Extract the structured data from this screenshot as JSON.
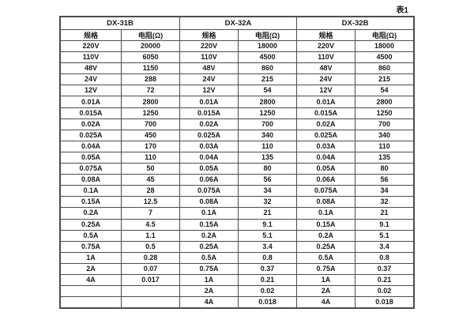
{
  "page": {
    "caption": "表1"
  },
  "table": {
    "groups": [
      {
        "name": "DX-31B",
        "spec_header": "规格",
        "resistance_header": "电阻(Ω)"
      },
      {
        "name": "DX-32A",
        "spec_header": "规格",
        "resistance_header": "电阻(Ω)"
      },
      {
        "name": "DX-32B",
        "spec_header": "规格",
        "resistance_header": "电阻(Ω)"
      }
    ],
    "rows": [
      [
        "220V",
        "20000",
        "220V",
        "18000",
        "220V",
        "18000"
      ],
      [
        "110V",
        "6050",
        "110V",
        "4500",
        "110V",
        "4500"
      ],
      [
        "48V",
        "1150",
        "48V",
        "860",
        "48V",
        "860"
      ],
      [
        "24V",
        "288",
        "24V",
        "215",
        "24V",
        "215"
      ],
      [
        "12V",
        "72",
        "12V",
        "54",
        "12V",
        "54"
      ],
      [
        "0.01A",
        "2800",
        "0.01A",
        "2800",
        "0.01A",
        "2800"
      ],
      [
        "0.015A",
        "1250",
        "0.015A",
        "1250",
        "0.015A",
        "1250"
      ],
      [
        "0.02A",
        "700",
        "0.02A",
        "700",
        "0.02A",
        "700"
      ],
      [
        "0.025A",
        "450",
        "0.025A",
        "340",
        "0.025A",
        "340"
      ],
      [
        "0.04A",
        "170",
        "0.03A",
        "110",
        "0.03A",
        "110"
      ],
      [
        "0.05A",
        "110",
        "0.04A",
        "135",
        "0.04A",
        "135"
      ],
      [
        "0.075A",
        "50",
        "0.05A",
        "80",
        "0.05A",
        "80"
      ],
      [
        "0.08A",
        "45",
        "0.06A",
        "56",
        "0.06A",
        "56"
      ],
      [
        "0.1A",
        "28",
        "0.075A",
        "34",
        "0.075A",
        "34"
      ],
      [
        "0.15A",
        "12.5",
        "0.08A",
        "32",
        "0.08A",
        "32"
      ],
      [
        "0.2A",
        "7",
        "0.1A",
        "21",
        "0.1A",
        "21"
      ],
      [
        "0.25A",
        "4.5",
        "0.15A",
        "9.1",
        "0.15A",
        "9.1"
      ],
      [
        "0.5A",
        "1.1",
        "0.2A",
        "5.1",
        "0.2A",
        "5.1"
      ],
      [
        "0.75A",
        "0.5",
        "0.25A",
        "3.4",
        "0.25A",
        "3.4"
      ],
      [
        "1A",
        "0.28",
        "0.5A",
        "0.8",
        "0.5A",
        "0.8"
      ],
      [
        "2A",
        "0.07",
        "0.75A",
        "0.37",
        "0.75A",
        "0.37"
      ],
      [
        "4A",
        "0.017",
        "1A",
        "0.21",
        "1A",
        "0.21"
      ],
      [
        "",
        "",
        "2A",
        "0.02",
        "2A",
        "0.02"
      ],
      [
        "",
        "",
        "4A",
        "0.018",
        "4A",
        "0.018"
      ]
    ],
    "colors": {
      "border": "#4d4d4d",
      "text": "#1a1a1a",
      "background": "#ffffff"
    }
  }
}
